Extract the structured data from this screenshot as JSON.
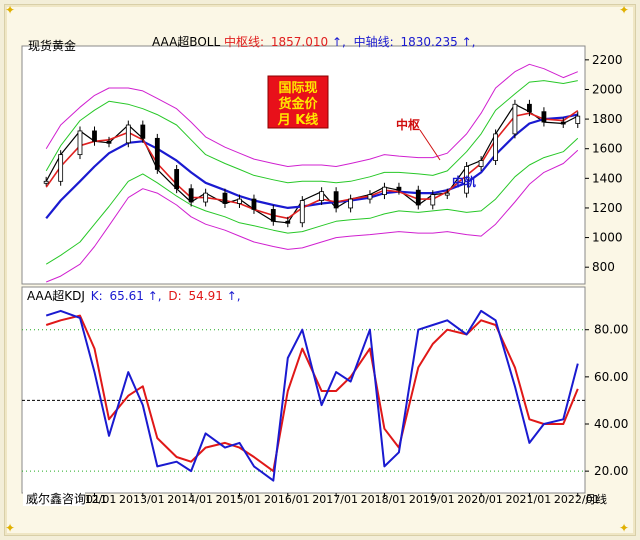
{
  "chart_data": [
    {
      "type": "line",
      "panel": "price",
      "instrument_label": "现货黄金",
      "indicator_label": "AAA超BOLL",
      "mid_label": "中枢线:",
      "mid_value": "1857.010",
      "axis_label": "中轴线:",
      "axis_value": "1830.235",
      "badge_text": [
        "国际现",
        "货金价",
        "月 K线"
      ],
      "annotations": [
        "中枢",
        "中轨"
      ],
      "y_ticks": [
        800,
        1000,
        1200,
        1400,
        1600,
        1800,
        2000,
        2200
      ],
      "ylim": [
        700,
        2280
      ],
      "x": [
        2011.0,
        2011.3,
        2011.7,
        2012.0,
        2012.3,
        2012.7,
        2013.0,
        2013.3,
        2013.7,
        2014.0,
        2014.3,
        2014.7,
        2015.0,
        2015.3,
        2015.7,
        2016.0,
        2016.3,
        2016.7,
        2017.0,
        2017.3,
        2017.7,
        2018.0,
        2018.3,
        2018.7,
        2019.0,
        2019.3,
        2019.7,
        2020.0,
        2020.3,
        2020.7,
        2021.0,
        2021.3,
        2021.7,
        2022.0
      ],
      "series": [
        {
          "name": "价格",
          "color": "#000000",
          "values": [
            1380,
            1560,
            1720,
            1650,
            1640,
            1760,
            1670,
            1460,
            1330,
            1240,
            1300,
            1230,
            1260,
            1190,
            1110,
            1100,
            1250,
            1310,
            1200,
            1260,
            1290,
            1340,
            1320,
            1220,
            1290,
            1300,
            1480,
            1520,
            1700,
            1900,
            1850,
            1780,
            1770,
            1820
          ]
        },
        {
          "name": "中枢线",
          "color": "#e02020",
          "values": [
            1340,
            1480,
            1620,
            1650,
            1660,
            1710,
            1660,
            1500,
            1360,
            1270,
            1270,
            1250,
            1230,
            1190,
            1150,
            1130,
            1200,
            1260,
            1240,
            1260,
            1280,
            1320,
            1310,
            1260,
            1260,
            1310,
            1420,
            1500,
            1660,
            1820,
            1840,
            1800,
            1790,
            1857
          ]
        },
        {
          "name": "中轴线",
          "color": "#1a1ad0",
          "values": [
            1130,
            1250,
            1380,
            1480,
            1570,
            1640,
            1650,
            1600,
            1520,
            1440,
            1370,
            1320,
            1280,
            1250,
            1220,
            1200,
            1210,
            1230,
            1240,
            1250,
            1270,
            1300,
            1310,
            1300,
            1300,
            1320,
            1370,
            1440,
            1560,
            1690,
            1770,
            1800,
            1810,
            1830
          ]
        },
        {
          "name": "上轨1",
          "color": "#28c828",
          "values": [
            1450,
            1620,
            1790,
            1860,
            1920,
            1900,
            1870,
            1830,
            1760,
            1660,
            1560,
            1500,
            1460,
            1420,
            1390,
            1370,
            1380,
            1380,
            1370,
            1380,
            1410,
            1440,
            1440,
            1430,
            1420,
            1450,
            1580,
            1700,
            1860,
            1970,
            2050,
            2060,
            2040,
            2060
          ]
        },
        {
          "name": "下轨1",
          "color": "#28c828",
          "values": [
            820,
            880,
            970,
            1090,
            1210,
            1380,
            1430,
            1370,
            1280,
            1220,
            1180,
            1140,
            1100,
            1080,
            1050,
            1030,
            1040,
            1080,
            1110,
            1120,
            1130,
            1160,
            1180,
            1170,
            1180,
            1190,
            1170,
            1180,
            1260,
            1410,
            1490,
            1540,
            1580,
            1670
          ]
        },
        {
          "name": "上轨2",
          "color": "#d020d0",
          "values": [
            1600,
            1760,
            1880,
            1960,
            2010,
            2010,
            1990,
            1940,
            1870,
            1780,
            1680,
            1610,
            1570,
            1530,
            1500,
            1480,
            1490,
            1490,
            1480,
            1500,
            1530,
            1560,
            1550,
            1540,
            1540,
            1570,
            1700,
            1840,
            2010,
            2120,
            2170,
            2140,
            2080,
            2120
          ]
        },
        {
          "name": "下轨2",
          "color": "#d020d0",
          "values": [
            700,
            740,
            820,
            940,
            1080,
            1270,
            1330,
            1300,
            1220,
            1140,
            1090,
            1050,
            1010,
            970,
            940,
            920,
            930,
            970,
            1000,
            1010,
            1020,
            1030,
            1040,
            1030,
            1030,
            1040,
            1020,
            1010,
            1090,
            1240,
            1360,
            1440,
            1500,
            1590
          ]
        }
      ]
    },
    {
      "type": "line",
      "panel": "kdj",
      "indicator_label": "AAA超KDJ",
      "k_label": "K:",
      "k_value": "65.61",
      "d_label": "D:",
      "d_value": "54.91",
      "y_ticks": [
        20,
        40,
        60,
        80
      ],
      "ylim": [
        12,
        96
      ],
      "reference_lines": [
        20,
        50,
        80
      ],
      "x_ticks": [
        "2012/01",
        "2013/01",
        "2014/01",
        "2015/01",
        "2016/01",
        "2017/01",
        "2018/01",
        "2019/01",
        "2020/01",
        "2021/01",
        "2022/01"
      ],
      "x_tick_positions": [
        2012,
        2013,
        2014,
        2015,
        2016,
        2017,
        2018,
        2019,
        2020,
        2021,
        2022
      ],
      "x_first_label": "011",
      "period_label": "月线",
      "x": [
        2011.0,
        2011.3,
        2011.7,
        2012.0,
        2012.3,
        2012.7,
        2013.0,
        2013.3,
        2013.7,
        2014.0,
        2014.3,
        2014.7,
        2015.0,
        2015.3,
        2015.7,
        2016.0,
        2016.3,
        2016.7,
        2017.0,
        2017.3,
        2017.7,
        2018.0,
        2018.3,
        2018.7,
        2019.0,
        2019.3,
        2019.7,
        2020.0,
        2020.3,
        2020.7,
        2021.0,
        2021.3,
        2021.7,
        2022.0
      ],
      "series": [
        {
          "name": "K",
          "color": "#1a1ad0",
          "values": [
            86,
            88,
            85,
            62,
            35,
            62,
            48,
            22,
            24,
            20,
            36,
            30,
            32,
            22,
            16,
            68,
            80,
            48,
            62,
            58,
            80,
            22,
            28,
            80,
            82,
            84,
            78,
            88,
            84,
            56,
            32,
            40,
            42,
            65.61
          ]
        },
        {
          "name": "D",
          "color": "#e01818",
          "values": [
            82,
            84,
            86,
            72,
            42,
            52,
            56,
            34,
            26,
            24,
            30,
            32,
            30,
            26,
            20,
            54,
            72,
            54,
            54,
            60,
            72,
            38,
            30,
            64,
            74,
            80,
            78,
            84,
            82,
            64,
            42,
            40,
            40,
            54.91
          ]
        }
      ]
    }
  ],
  "footer": {
    "source_label": "威尔鑫咨询"
  }
}
